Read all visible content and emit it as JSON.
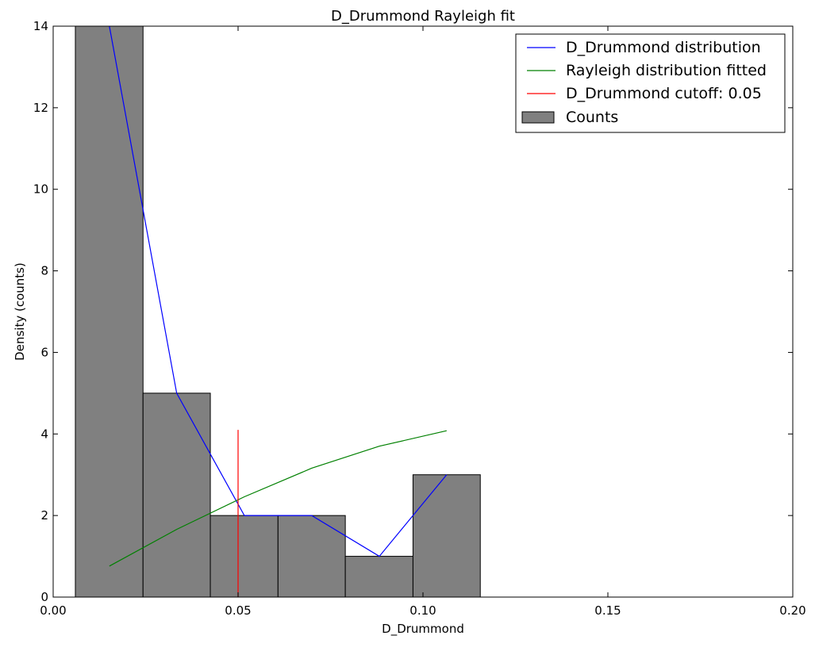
{
  "chart_data": {
    "type": "bar",
    "title": "D_Drummond Rayleigh fit",
    "xlabel": "D_Drummond",
    "ylabel": "Density (counts)",
    "xlim": [
      0.0,
      0.2
    ],
    "ylim": [
      0,
      14
    ],
    "grid": false,
    "legend_position": "top-right",
    "x_ticks": [
      0.0,
      0.05,
      0.1,
      0.15,
      0.2
    ],
    "x_tick_labels": [
      "0.00",
      "0.05",
      "0.10",
      "0.15",
      "0.20"
    ],
    "y_ticks": [
      0,
      2,
      4,
      6,
      8,
      10,
      12,
      14
    ],
    "y_tick_labels": [
      "0",
      "2",
      "4",
      "6",
      "8",
      "10",
      "12",
      "14"
    ],
    "histogram": {
      "name": "Counts",
      "color": "#808080",
      "bin_edges": [
        0.006,
        0.0243,
        0.0425,
        0.0608,
        0.079,
        0.0973,
        0.1155
      ],
      "values": [
        14,
        5,
        2,
        2,
        1,
        3
      ]
    },
    "series": [
      {
        "name": "D_Drummond distribution",
        "color": "#0000ff",
        "x": [
          0.0152,
          0.0334,
          0.0517,
          0.0699,
          0.0882,
          0.1064
        ],
        "y": [
          14,
          5,
          2,
          2,
          1,
          3
        ]
      },
      {
        "name": "Rayleigh distribution fitted",
        "color": "#008000",
        "x": [
          0.0152,
          0.0334,
          0.0517,
          0.0699,
          0.0882,
          0.1064
        ],
        "y": [
          0.76,
          1.66,
          2.46,
          3.16,
          3.7,
          4.08
        ]
      }
    ],
    "cutoff": {
      "name": "D_Drummond cutoff: 0.05",
      "color": "#ff0000",
      "x": 0.05,
      "y_range": [
        0,
        4.1
      ]
    }
  }
}
